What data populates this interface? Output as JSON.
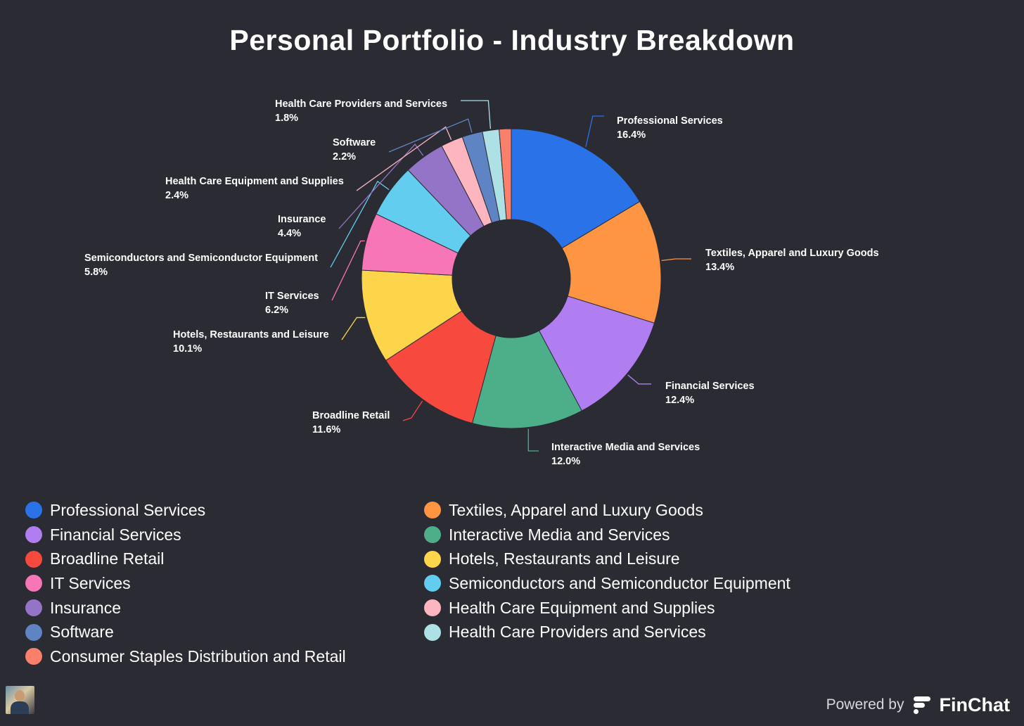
{
  "chart_data": {
    "type": "pie",
    "variant": "donut",
    "title": "Personal Portfolio - Industry Breakdown",
    "legend_position": "bottom",
    "slices": [
      {
        "name": "Professional Services",
        "value": 16.4,
        "label": "16.4%",
        "color": "#2a72e8"
      },
      {
        "name": "Textiles, Apparel and Luxury Goods",
        "value": 13.4,
        "label": "13.4%",
        "color": "#fe9542"
      },
      {
        "name": "Financial Services",
        "value": 12.4,
        "label": "12.4%",
        "color": "#b17ef2"
      },
      {
        "name": "Interactive Media and Services",
        "value": 12.0,
        "label": "12.0%",
        "color": "#4daf8a"
      },
      {
        "name": "Broadline Retail",
        "value": 11.6,
        "label": "11.6%",
        "color": "#f8493f"
      },
      {
        "name": "Hotels, Restaurants and Leisure",
        "value": 10.1,
        "label": "10.1%",
        "color": "#fdd54a"
      },
      {
        "name": "IT Services",
        "value": 6.2,
        "label": "6.2%",
        "color": "#f676b8"
      },
      {
        "name": "Semiconductors and Semiconductor Equipment",
        "value": 5.8,
        "label": "5.8%",
        "color": "#62cdef"
      },
      {
        "name": "Insurance",
        "value": 4.4,
        "label": "4.4%",
        "color": "#9474c7"
      },
      {
        "name": "Health Care Equipment and Supplies",
        "value": 2.4,
        "label": "2.4%",
        "color": "#fdb6c0"
      },
      {
        "name": "Software",
        "value": 2.2,
        "label": "2.2%",
        "color": "#5f84c4"
      },
      {
        "name": "Health Care Providers and Services",
        "value": 1.8,
        "label": "1.8%",
        "color": "#ade1e6"
      },
      {
        "name": "Consumer Staples Distribution and Retail",
        "value": 1.3,
        "label": "",
        "color": "#fa806c"
      }
    ],
    "legend": [
      "Professional Services",
      "Textiles, Apparel and Luxury Goods",
      "Financial Services",
      "Interactive Media and Services",
      "Broadline Retail",
      "Hotels, Restaurants and Leisure",
      "IT Services",
      "Semiconductors and Semiconductor Equipment",
      "Insurance",
      "Health Care Equipment and Supplies",
      "Software",
      "Health Care Providers and Services",
      "Consumer Staples Distribution and Retail"
    ]
  },
  "footer": {
    "powered_by": "Powered by",
    "brand_name": "FinChat"
  }
}
